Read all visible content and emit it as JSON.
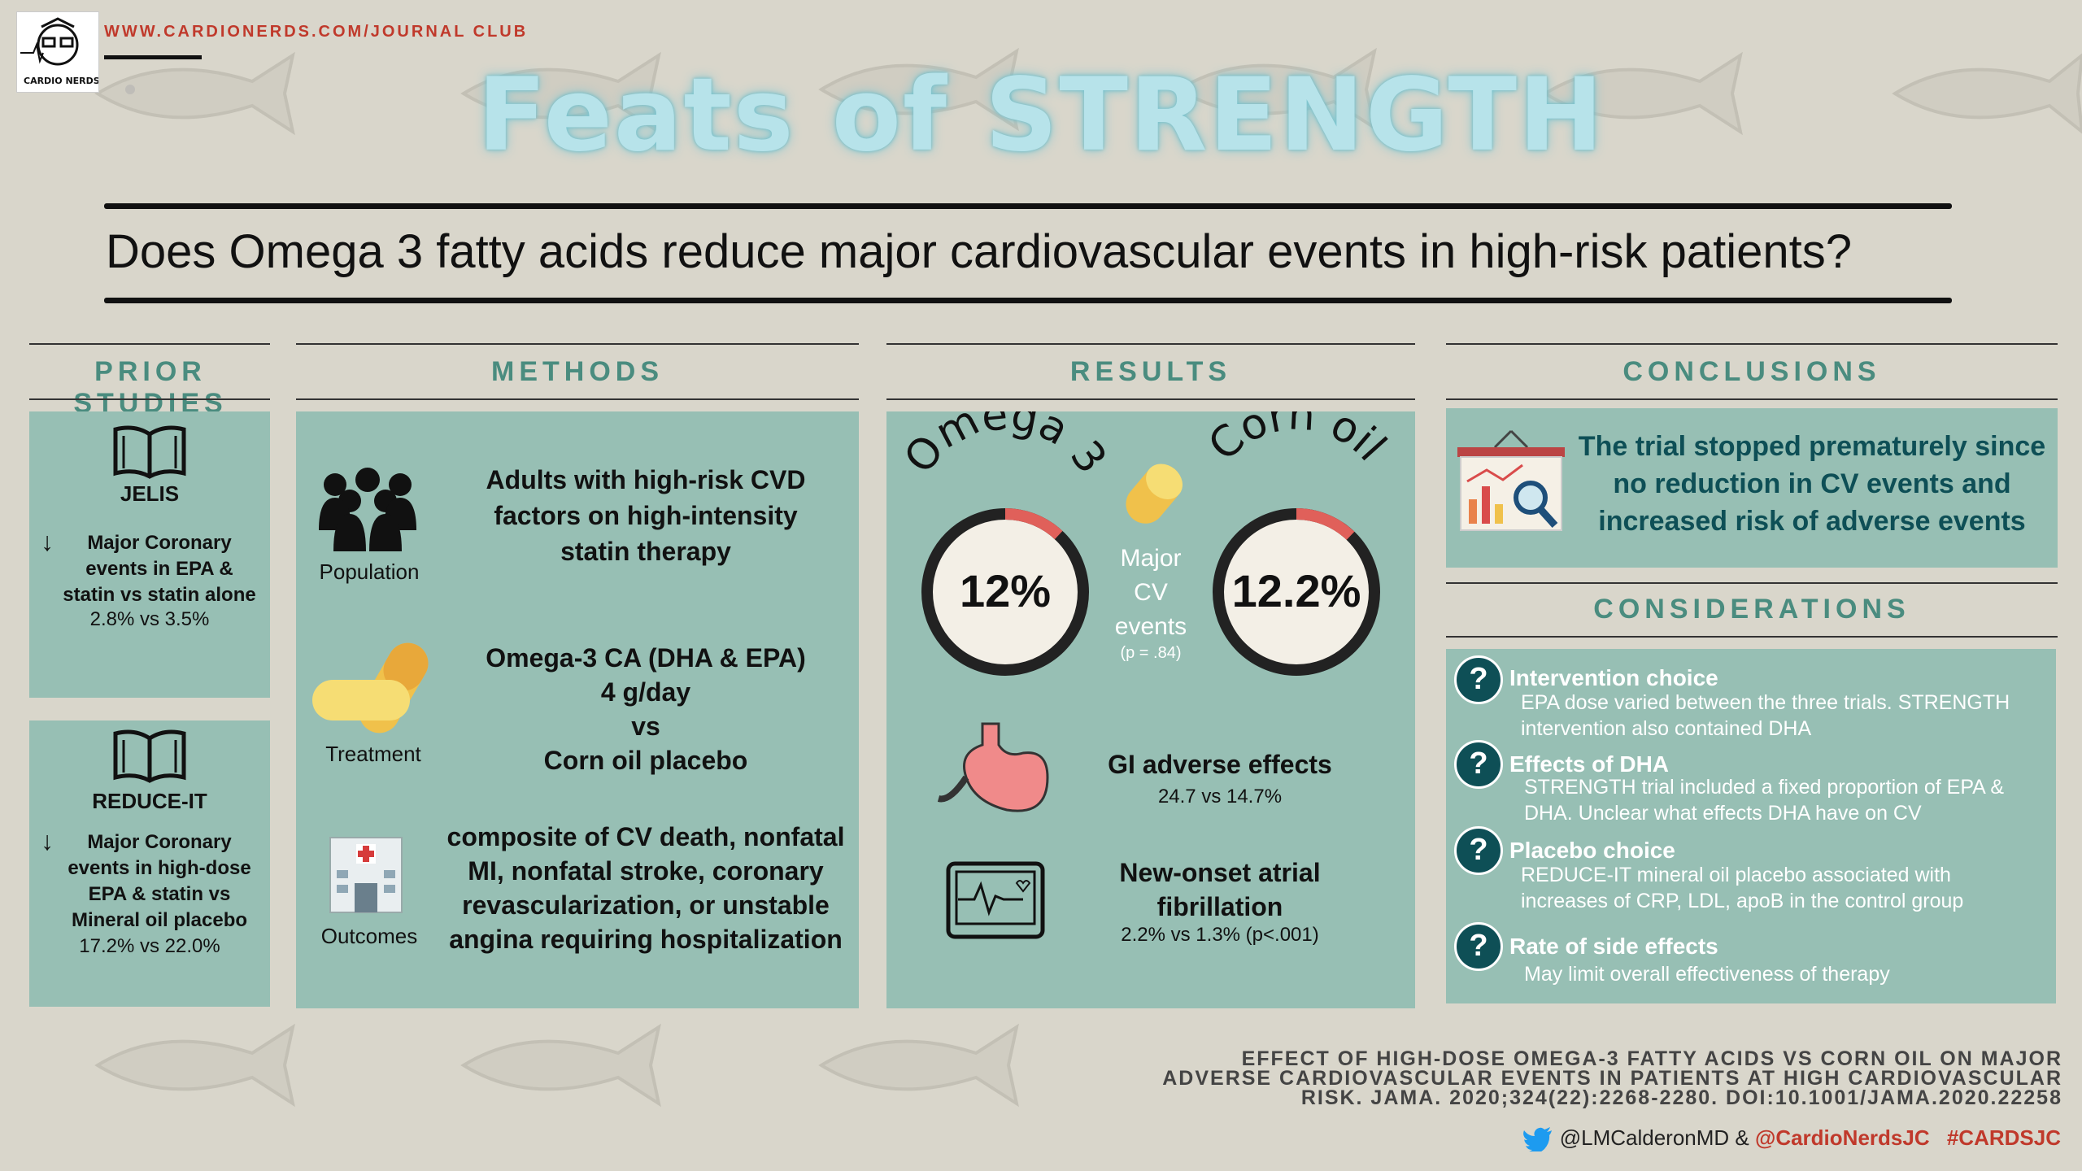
{
  "header": {
    "site": "WWW.CARDIONERDS.COM/JOURNAL CLUB",
    "title": "Feats of STRENGTH",
    "question": "Does Omega 3 fatty acids reduce major cardiovascular events in high-risk patients?"
  },
  "logo": {
    "text": "CARDIO NERDS"
  },
  "sections": {
    "prior": "PRIOR STUDIES",
    "methods": "METHODS",
    "results": "RESULTS",
    "conclusions": "CONCLUSIONS",
    "considerations": "CONSIDERATIONS"
  },
  "prior": [
    {
      "name": "JELIS",
      "line1": "Major Coronary",
      "line2": "events in EPA &",
      "line3": "statin vs statin alone",
      "stat": "2.8% vs 3.5%"
    },
    {
      "name": "REDUCE-IT",
      "line1": "Major Coronary",
      "line2": "events in high-dose",
      "line3": "EPA & statin vs",
      "line4": "Mineral oil placebo",
      "stat": "17.2% vs 22.0%"
    }
  ],
  "methods": {
    "population": {
      "label": "Population",
      "l1": "Adults with high-risk CVD",
      "l2": "factors on high-intensity",
      "l3": "statin therapy"
    },
    "treatment": {
      "label": "Treatment",
      "l1": "Omega-3 CA (DHA & EPA)",
      "l2": "4 g/day",
      "l3": "vs",
      "l4": "Corn oil placebo"
    },
    "outcomes": {
      "label": "Outcomes",
      "l1": "composite of CV death, nonfatal",
      "l2": "MI, nonfatal stroke, coronary",
      "l3": "revascularization, or unstable",
      "l4": "angina requiring hospitalization"
    }
  },
  "results": {
    "omega_label": "Omega 3",
    "corn_label": "Corn oil",
    "omega_value": "12%",
    "corn_value": "12.2%",
    "omega_fraction": 0.12,
    "corn_fraction": 0.122,
    "mid1": "Major",
    "mid2": "CV",
    "mid3": "events",
    "p": "(p = .84)",
    "gi_title": "GI adverse effects",
    "gi_stat": "24.7 vs 14.7%",
    "af_title1": "New-onset atrial",
    "af_title2": "fibrillation",
    "af_stat": "2.2% vs 1.3% (p<.001)"
  },
  "conclusion": {
    "l1": "The trial stopped prematurely since",
    "l2": "no reduction in CV events and",
    "l3": "increased risk of adverse events"
  },
  "considerations": [
    {
      "head": "Intervention choice",
      "b1": "EPA dose varied between the three trials. STRENGTH",
      "b2": "intervention also contained DHA"
    },
    {
      "head": "Effects of DHA",
      "b1": "STRENGTH trial included a fixed proportion of EPA &",
      "b2": "DHA. Unclear what effects DHA have on CV"
    },
    {
      "head": "Placebo choice",
      "b1": "REDUCE-IT mineral oil placebo associated with",
      "b2": "increases of CRP, LDL, apoB in the control group"
    },
    {
      "head": "Rate of side effects",
      "b1": "May limit overall effectiveness of therapy",
      "b2": ""
    }
  ],
  "footer": {
    "ref1": "Effect of High-Dose Omega-3 Fatty Acids vs Corn Oil on Major",
    "ref2": "Adverse Cardiovascular Events in Patients at High Cardiovascular",
    "ref3": "Risk. JAMA. 2020;324(22):2268-2280. doi:10.1001/jama.2020.22258",
    "handle1": "@LMCalderonMD & ",
    "handle2": "@CardioNerdsJC",
    "hashtag": "#CARDSJC"
  },
  "colors": {
    "accent": "#4a8c7f",
    "panel": "#97bfb4",
    "title": "#b7e3ea",
    "ring": "#222222",
    "ring_highlight": "#e0605a"
  }
}
